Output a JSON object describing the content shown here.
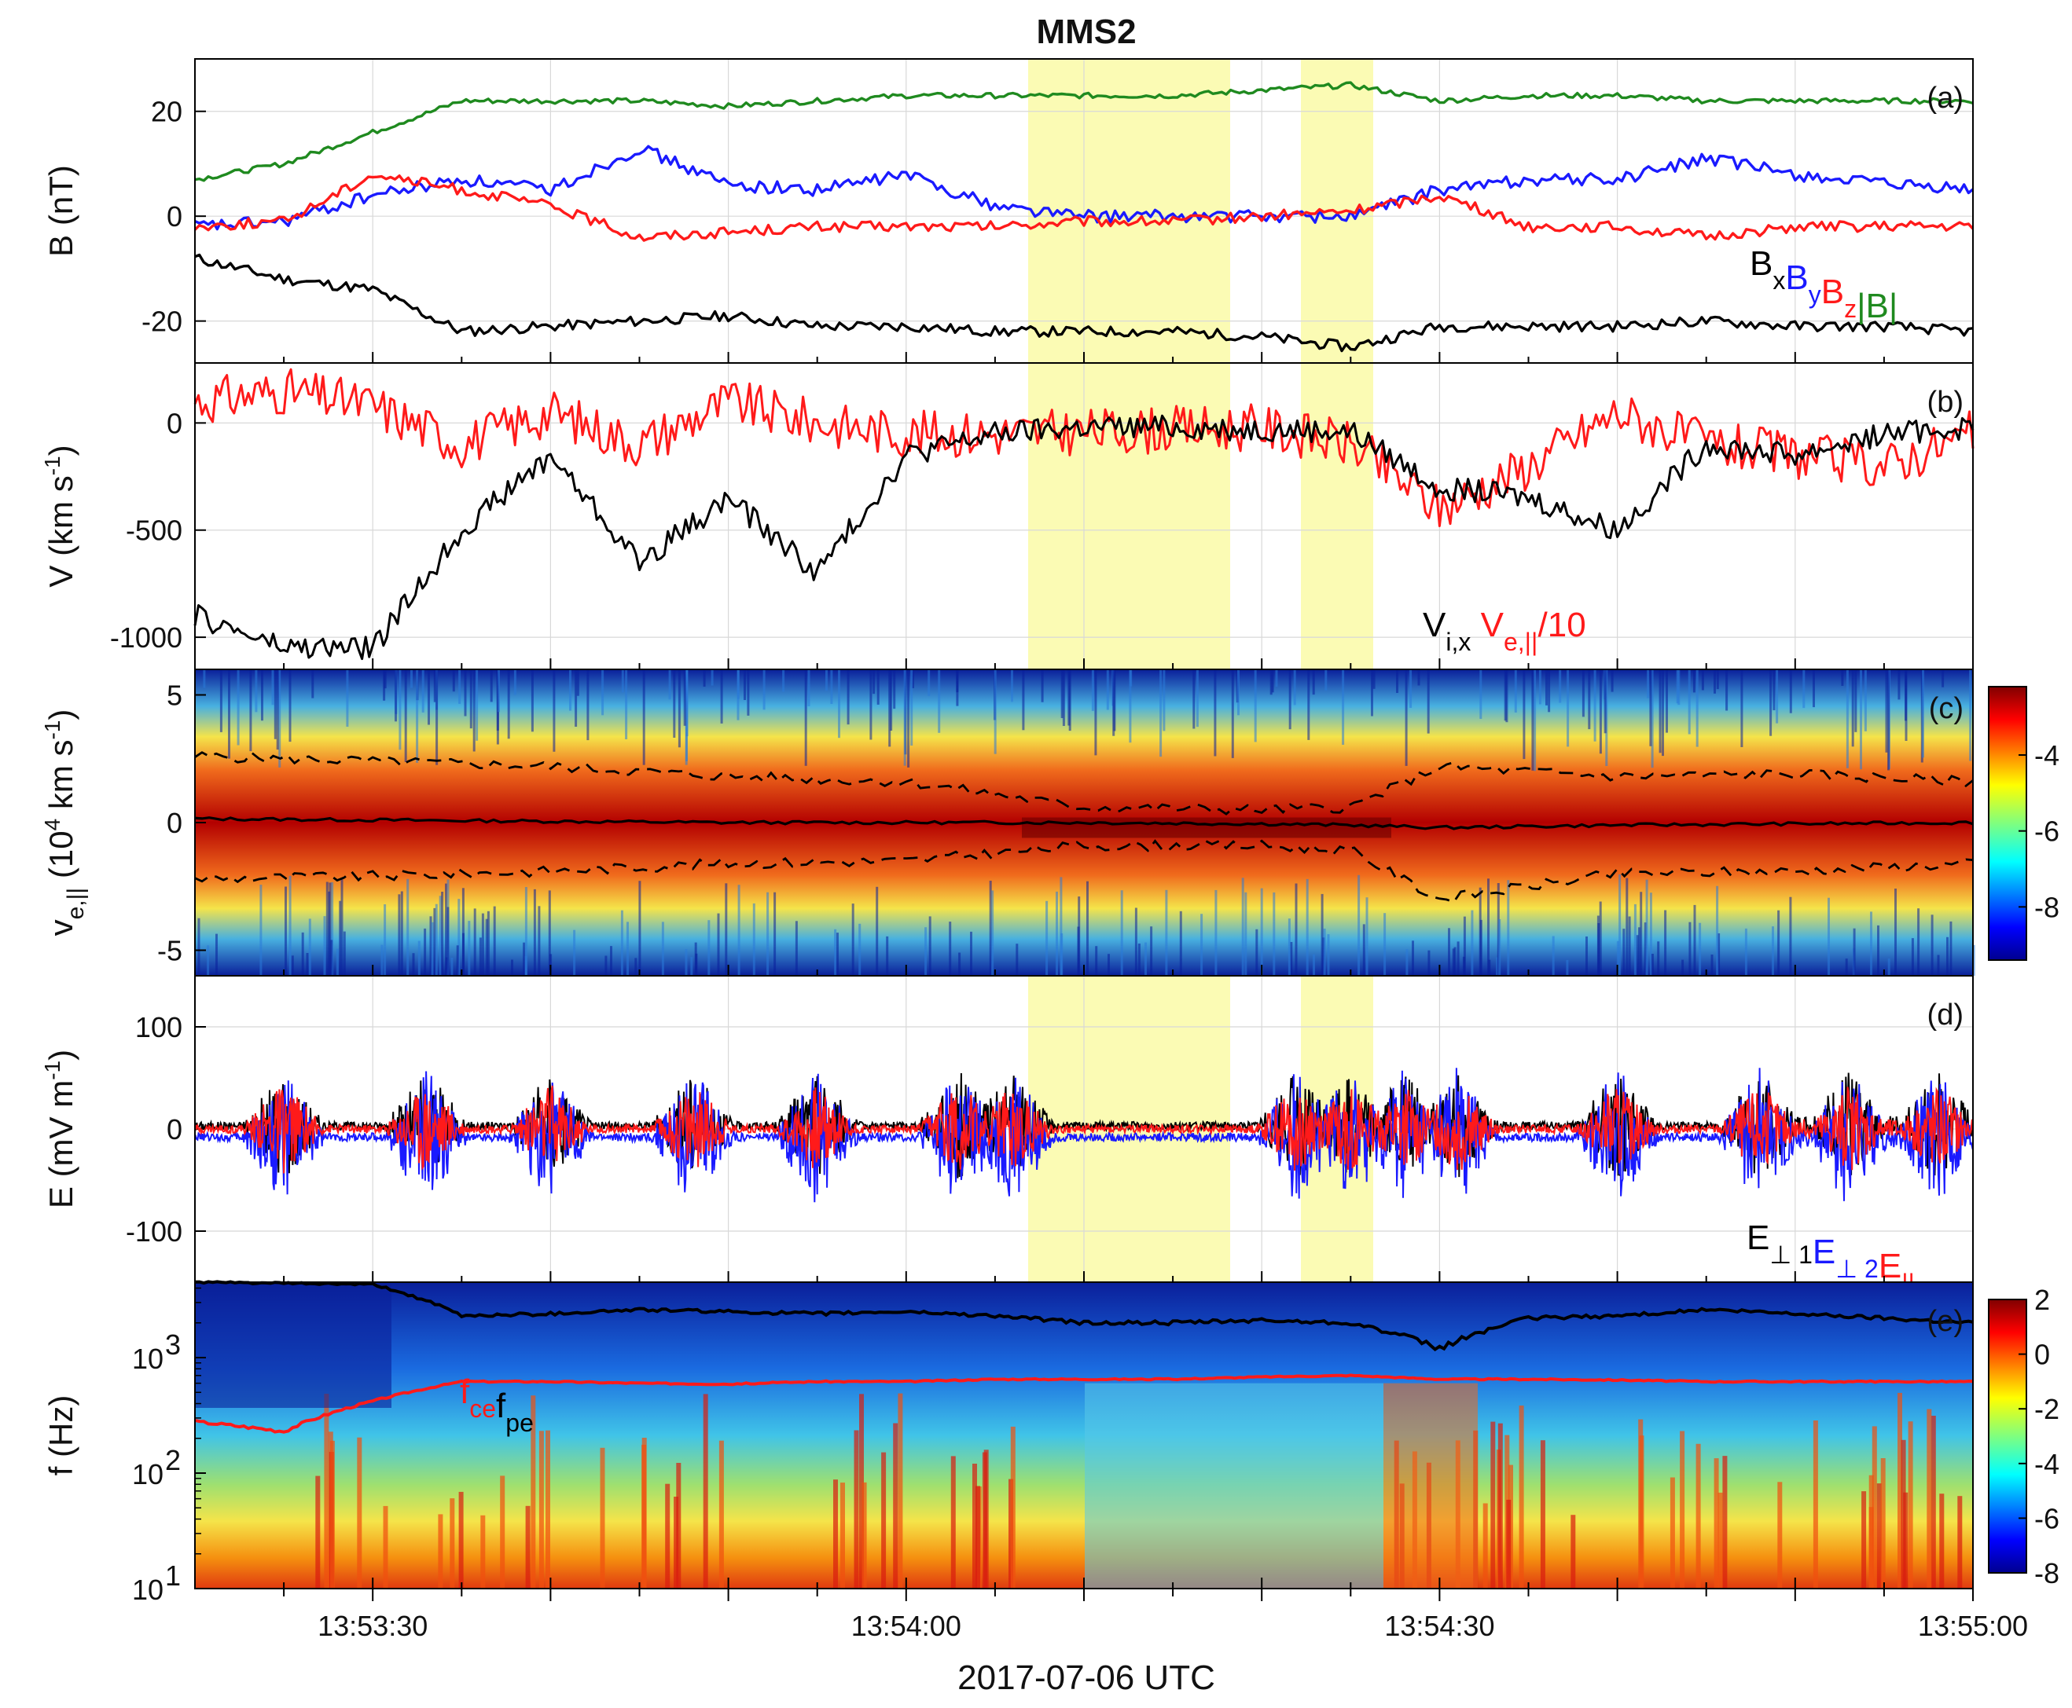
{
  "title": "MMS2",
  "xlabel": "2017-07-06 UTC",
  "time_ticks": [
    "13:53:30",
    "13:54:00",
    "13:54:30",
    "13:55:00"
  ],
  "colors": {
    "black": "#000000",
    "blue": "#1a1aff",
    "red": "#ff1a1a",
    "green": "#1f8a1f",
    "highlight": "#fbfbb4"
  },
  "chart_data": [
    {
      "panel": "a",
      "type": "line",
      "panel_label": "(a)",
      "ylabel": "B (nT)",
      "ylim": [
        -28,
        30
      ],
      "yticks": [
        "20",
        "0",
        "-20"
      ],
      "legend": [
        "Bx",
        "By",
        "Bz",
        "|B|"
      ],
      "x": [
        "13:53:20",
        "13:53:25",
        "13:53:30",
        "13:53:35",
        "13:53:40",
        "13:53:45",
        "13:53:50",
        "13:53:55",
        "13:54:00",
        "13:54:05",
        "13:54:10",
        "13:54:15",
        "13:54:20",
        "13:54:25",
        "13:54:30",
        "13:54:35",
        "13:54:40",
        "13:54:45",
        "13:54:50",
        "13:54:55",
        "13:55:00"
      ],
      "series": [
        {
          "name": "Bx",
          "values": [
            -8,
            -12,
            -14,
            -22,
            -21,
            -20,
            -19,
            -21,
            -21,
            -22,
            -22,
            -22,
            -23,
            -25,
            -21,
            -21,
            -21,
            -20,
            -21,
            -21,
            -22
          ]
        },
        {
          "name": "By",
          "values": [
            -2,
            -1,
            4,
            7,
            5,
            13,
            6,
            5,
            8,
            2,
            0,
            0,
            0,
            0,
            5,
            7,
            7,
            11,
            8,
            6,
            5
          ]
        },
        {
          "name": "Bz",
          "values": [
            -2,
            -1,
            8,
            5,
            2,
            -4,
            -3,
            -2,
            -2,
            -2,
            -1,
            -1,
            0,
            1,
            4,
            -2,
            -2,
            -4,
            -2,
            -2,
            -2
          ]
        },
        {
          "name": "|B|",
          "values": [
            7,
            10,
            16,
            22,
            22,
            22,
            21,
            22,
            23,
            23,
            23,
            23,
            24,
            25,
            22,
            23,
            23,
            22,
            22,
            22,
            22
          ]
        }
      ]
    },
    {
      "panel": "b",
      "type": "line",
      "panel_label": "(b)",
      "ylabel": "V (km s-1)",
      "ylim": [
        -1150,
        280
      ],
      "yticks": [
        "0",
        "-500",
        "-1000"
      ],
      "legend": [
        "Vi,x",
        "Ve,||/10"
      ],
      "x": [
        "13:53:20",
        "13:53:25",
        "13:53:30",
        "13:53:35",
        "13:53:40",
        "13:53:45",
        "13:53:50",
        "13:53:55",
        "13:54:00",
        "13:54:05",
        "13:54:10",
        "13:54:15",
        "13:54:20",
        "13:54:25",
        "13:54:30",
        "13:54:35",
        "13:54:40",
        "13:54:45",
        "13:54:50",
        "13:54:55",
        "13:55:00"
      ],
      "series": [
        {
          "name": "Vi,x",
          "values": [
            -900,
            -1050,
            -1050,
            -500,
            -150,
            -650,
            -350,
            -700,
            -150,
            -50,
            -20,
            -20,
            -30,
            -40,
            -300,
            -350,
            -500,
            -100,
            -150,
            -50,
            -20
          ]
        },
        {
          "name": "Ve,||/10",
          "values": [
            100,
            150,
            80,
            -100,
            50,
            -100,
            100,
            0,
            -50,
            -50,
            -40,
            -30,
            -20,
            -100,
            -400,
            -200,
            50,
            -100,
            -150,
            -200,
            -50
          ]
        }
      ]
    },
    {
      "panel": "c",
      "type": "heatmap",
      "panel_label": "(c)",
      "ylabel": "ve,|| (10^4 km s-1)",
      "ylim": [
        -6,
        6
      ],
      "yticks": [
        "5",
        "0",
        "-5"
      ],
      "colorbar_ticks": [
        "-4",
        "-6",
        "-8"
      ]
    },
    {
      "panel": "d",
      "type": "line",
      "panel_label": "(d)",
      "ylabel": "E (mV m-1)",
      "ylim": [
        -150,
        150
      ],
      "yticks": [
        "100",
        "0",
        "-100"
      ],
      "legend": [
        "E⊥1",
        "E⊥2",
        "E||"
      ],
      "bursts_at": [
        "13:53:25",
        "13:53:33",
        "13:53:40",
        "13:53:48",
        "13:53:55",
        "13:54:03",
        "13:54:06",
        "13:54:22",
        "13:54:25",
        "13:54:28",
        "13:54:31",
        "13:54:40",
        "13:54:48",
        "13:54:53",
        "13:54:58"
      ]
    },
    {
      "panel": "e",
      "type": "heatmap",
      "panel_label": "(e)",
      "ylabel": "f (Hz)",
      "yscale": "log",
      "ylim": [
        10,
        4500
      ],
      "yticks": [
        "10",
        "10",
        "10"
      ],
      "ytick_exponents": [
        "3",
        "2",
        "1"
      ],
      "colorbar_ticks": [
        "2",
        "0",
        "-2",
        "-4",
        "-6",
        "-8"
      ],
      "legend": [
        "fce",
        "fpe"
      ],
      "x": [
        "13:53:20",
        "13:53:25",
        "13:53:30",
        "13:53:35",
        "13:53:40",
        "13:53:45",
        "13:53:50",
        "13:53:55",
        "13:54:00",
        "13:54:05",
        "13:54:10",
        "13:54:15",
        "13:54:20",
        "13:54:25",
        "13:54:30",
        "13:54:35",
        "13:54:40",
        "13:54:45",
        "13:54:50",
        "13:54:55",
        "13:55:00"
      ],
      "series": [
        {
          "name": "fpe",
          "values": [
            4500,
            4400,
            4300,
            2300,
            2400,
            2600,
            2500,
            2400,
            2500,
            2300,
            2000,
            2000,
            2100,
            2000,
            1200,
            2200,
            2300,
            2600,
            2400,
            2200,
            2000
          ]
        },
        {
          "name": "fce",
          "values": [
            280,
            230,
            420,
            620,
            620,
            600,
            590,
            620,
            620,
            650,
            650,
            650,
            680,
            700,
            650,
            650,
            640,
            620,
            620,
            620,
            620
          ]
        }
      ]
    }
  ]
}
